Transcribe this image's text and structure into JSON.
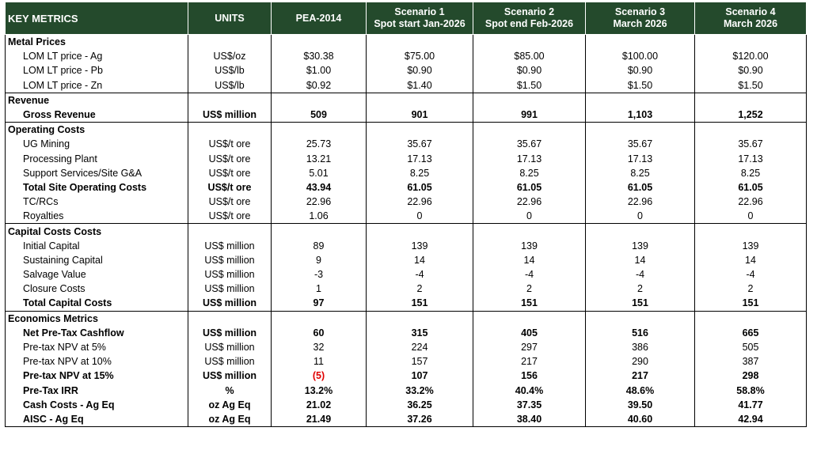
{
  "headers": [
    {
      "l1": "KEY METRICS",
      "l2": ""
    },
    {
      "l1": "UNITS",
      "l2": ""
    },
    {
      "l1": "PEA-2014",
      "l2": ""
    },
    {
      "l1": "Scenario 1",
      "l2": "Spot start Jan-2026"
    },
    {
      "l1": "Scenario 2",
      "l2": "Spot end Feb-2026"
    },
    {
      "l1": "Scenario 3",
      "l2": "March 2026"
    },
    {
      "l1": "Scenario 4",
      "l2": "March 2026"
    }
  ],
  "rows": [
    {
      "type": "section",
      "label": "Metal Prices",
      "cells": [
        "",
        "",
        "",
        "",
        "",
        ""
      ]
    },
    {
      "type": "normal",
      "label": "LOM LT price - Ag",
      "cells": [
        "US$/oz",
        "$30.38",
        "$75.00",
        "$85.00",
        "$100.00",
        "$120.00"
      ]
    },
    {
      "type": "normal",
      "label": "LOM LT price - Pb",
      "cells": [
        "US$/lb",
        "$1.00",
        "$0.90",
        "$0.90",
        "$0.90",
        "$0.90"
      ]
    },
    {
      "type": "normal",
      "label": "LOM LT price - Zn",
      "cells": [
        "US$/lb",
        "$0.92",
        "$1.40",
        "$1.50",
        "$1.50",
        "$1.50"
      ]
    },
    {
      "type": "section",
      "label": "Revenue",
      "cells": [
        "",
        "",
        "",
        "",
        "",
        ""
      ]
    },
    {
      "type": "bold",
      "label": "Gross Revenue",
      "cells": [
        "US$ million",
        "509",
        "901",
        "991",
        "1,103",
        "1,252"
      ]
    },
    {
      "type": "section",
      "label": "Operating Costs",
      "cells": [
        "",
        "",
        "",
        "",
        "",
        ""
      ]
    },
    {
      "type": "normal",
      "label": "UG Mining",
      "cells": [
        "US$/t ore",
        "25.73",
        "35.67",
        "35.67",
        "35.67",
        "35.67"
      ]
    },
    {
      "type": "normal",
      "label": "Processing Plant",
      "cells": [
        "US$/t ore",
        "13.21",
        "17.13",
        "17.13",
        "17.13",
        "17.13"
      ]
    },
    {
      "type": "normal",
      "label": "Support Services/Site G&A",
      "cells": [
        "US$/t ore",
        "5.01",
        "8.25",
        "8.25",
        "8.25",
        "8.25"
      ]
    },
    {
      "type": "bold",
      "label": "Total Site Operating Costs",
      "cells": [
        "US$/t ore",
        "43.94",
        "61.05",
        "61.05",
        "61.05",
        "61.05"
      ]
    },
    {
      "type": "normal",
      "label": "TC/RCs",
      "cells": [
        "US$/t ore",
        "22.96",
        "22.96",
        "22.96",
        "22.96",
        "22.96"
      ]
    },
    {
      "type": "normal",
      "label": "Royalties",
      "cells": [
        "US$/t ore",
        "1.06",
        "0",
        "0",
        "0",
        "0"
      ]
    },
    {
      "type": "section",
      "label": "Capital Costs Costs",
      "cells": [
        "",
        "",
        "",
        "",
        "",
        ""
      ]
    },
    {
      "type": "normal",
      "label": "Initial Capital",
      "cells": [
        "US$ million",
        "89",
        "139",
        "139",
        "139",
        "139"
      ]
    },
    {
      "type": "normal",
      "label": "Sustaining Capital",
      "cells": [
        "US$ million",
        "9",
        "14",
        "14",
        "14",
        "14"
      ]
    },
    {
      "type": "normal",
      "label": "Salvage Value",
      "cells": [
        "US$ million",
        "-3",
        "-4",
        "-4",
        "-4",
        "-4"
      ]
    },
    {
      "type": "normal",
      "label": "Closure Costs",
      "cells": [
        "US$ million",
        "1",
        "2",
        "2",
        "2",
        "2"
      ]
    },
    {
      "type": "bold",
      "label": "Total Capital Costs",
      "cells": [
        "US$ million",
        "97",
        "151",
        "151",
        "151",
        "151"
      ]
    },
    {
      "type": "section",
      "label": "Economics Metrics",
      "cells": [
        "",
        "",
        "",
        "",
        "",
        ""
      ]
    },
    {
      "type": "bold",
      "label": "Net Pre-Tax Cashflow",
      "cells": [
        "US$ million",
        "60",
        "315",
        "405",
        "516",
        "665"
      ]
    },
    {
      "type": "normal",
      "label": "Pre-tax NPV at 5%",
      "cells": [
        "US$ million",
        "32",
        "224",
        "297",
        "386",
        "505"
      ]
    },
    {
      "type": "normal",
      "label": "Pre-tax NPV at 10%",
      "cells": [
        "US$ million",
        "11",
        "157",
        "217",
        "290",
        "387"
      ]
    },
    {
      "type": "bold",
      "label": "Pre-tax NPV at 15%",
      "cells": [
        "US$ million",
        "(5)",
        "107",
        "156",
        "217",
        "298"
      ],
      "neg_col": 1
    },
    {
      "type": "bold",
      "label": "Pre-Tax IRR",
      "cells": [
        "%",
        "13.2%",
        "33.2%",
        "40.4%",
        "48.6%",
        "58.8%"
      ]
    },
    {
      "type": "bold",
      "label": "Cash Costs - Ag Eq",
      "cells": [
        "oz Ag Eq",
        "21.02",
        "36.25",
        "37.35",
        "39.50",
        "41.77"
      ]
    },
    {
      "type": "bold",
      "label": "AISC - Ag Eq",
      "cells": [
        "oz Ag Eq",
        "21.49",
        "37.26",
        "38.40",
        "40.60",
        "42.94"
      ]
    }
  ],
  "colors": {
    "header_bg": "#244a2c",
    "header_text": "#ffffff",
    "negative": "#e00000"
  }
}
